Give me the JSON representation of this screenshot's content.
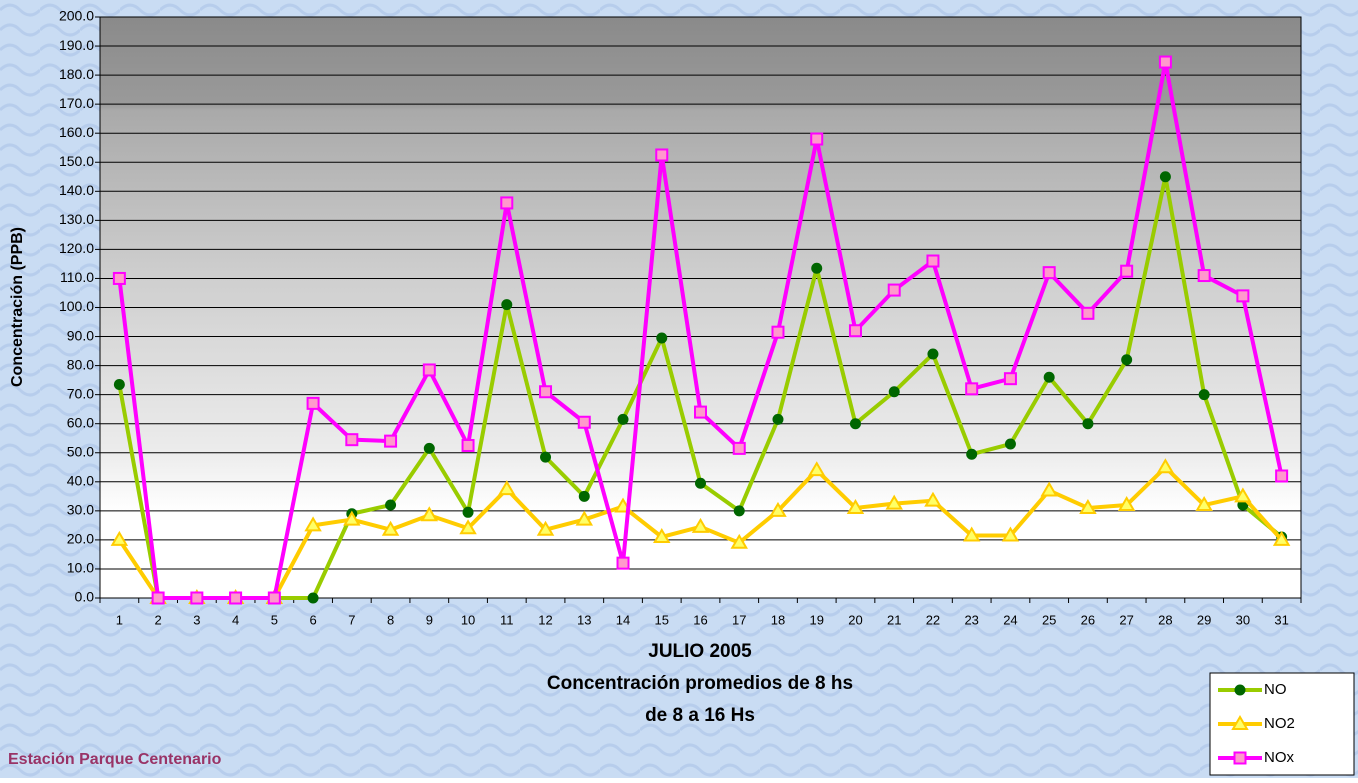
{
  "chart_data": {
    "type": "line",
    "y_label": "Concentración (PPB)",
    "x_title_lines": [
      "JULIO 2005",
      "Concentración promedios de 8 hs",
      "de 8 a 16 Hs"
    ],
    "footer": "Estación Parque Centenario",
    "categories": [
      "1",
      "2",
      "3",
      "4",
      "5",
      "6",
      "7",
      "8",
      "9",
      "10",
      "11",
      "12",
      "13",
      "14",
      "15",
      "16",
      "17",
      "18",
      "19",
      "20",
      "21",
      "22",
      "23",
      "24",
      "25",
      "26",
      "27",
      "28",
      "29",
      "30",
      "31"
    ],
    "ylim": [
      0,
      200
    ],
    "yticks": [
      {
        "value": 0,
        "label": "0.0"
      },
      {
        "value": 10,
        "label": "10.0"
      },
      {
        "value": 20,
        "label": "20.0"
      },
      {
        "value": 30,
        "label": "30.0"
      },
      {
        "value": 40,
        "label": "40.0"
      },
      {
        "value": 50,
        "label": "50.0"
      },
      {
        "value": 60,
        "label": "60.0"
      },
      {
        "value": 70,
        "label": "70.0"
      },
      {
        "value": 80,
        "label": "80.0"
      },
      {
        "value": 90,
        "label": "90.0"
      },
      {
        "value": 100,
        "label": "100.0"
      },
      {
        "value": 110,
        "label": "110.0"
      },
      {
        "value": 120,
        "label": "120.0"
      },
      {
        "value": 130,
        "label": "130.0"
      },
      {
        "value": 140,
        "label": "140.0"
      },
      {
        "value": 150,
        "label": "150.0"
      },
      {
        "value": 160,
        "label": "160.0"
      },
      {
        "value": 170,
        "label": "170.0"
      },
      {
        "value": 180,
        "label": "180.0"
      },
      {
        "value": 190,
        "label": "190.0"
      },
      {
        "value": 200,
        "label": "200.0"
      }
    ],
    "grid": true,
    "legend_position": "bottom-right",
    "series": [
      {
        "name": "NO",
        "color": "#99cc00",
        "marker": "circle",
        "marker_color": "#006600",
        "values": [
          73.5,
          0,
          0,
          0,
          0,
          0,
          29,
          32,
          51.5,
          29.5,
          101,
          48.5,
          35,
          61.5,
          89.5,
          39.5,
          30,
          61.5,
          113.5,
          60,
          71,
          84,
          49.5,
          53,
          76,
          60,
          82,
          145,
          70,
          32,
          21
        ]
      },
      {
        "name": "NO2",
        "color": "#ffcc00",
        "marker": "triangle",
        "marker_color": "#ffff66",
        "values": [
          20,
          0,
          0,
          0,
          0,
          25,
          27,
          23.5,
          28.5,
          24,
          37.5,
          23.5,
          27,
          31.5,
          21,
          24.5,
          19,
          30,
          44,
          31,
          32.5,
          33.5,
          21.5,
          21.5,
          37,
          31,
          32,
          45,
          32,
          35,
          20
        ]
      },
      {
        "name": "NOx",
        "color": "#ff00ff",
        "marker": "square",
        "marker_color": "#ff99cc",
        "values": [
          110,
          0,
          0,
          0,
          0,
          67,
          54.5,
          54,
          78.5,
          52.5,
          136,
          71,
          60.5,
          12,
          152.5,
          64,
          51.5,
          91.5,
          158,
          92,
          106,
          116,
          72,
          75.5,
          112,
          98,
          112.5,
          184.5,
          111,
          104,
          42
        ]
      }
    ]
  }
}
